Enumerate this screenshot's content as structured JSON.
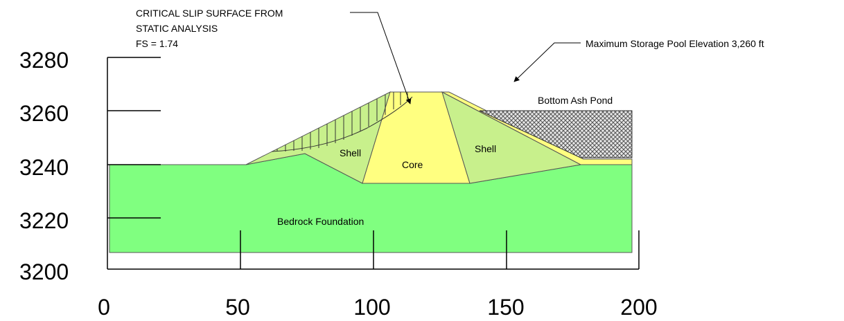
{
  "annotations": {
    "slip_surface": [
      "CRITICAL SLIP SURFACE FROM",
      "STATIC ANALYSIS",
      "FS = 1.74"
    ],
    "pool": "Maximum Storage Pool Elevation 3,260 ft"
  },
  "regions": {
    "shell_left": "Shell",
    "core": "Core",
    "shell_right": "Shell",
    "foundation": "Bedrock Foundation",
    "pond": "Bottom Ash Pond"
  },
  "axes": {
    "x_labels": [
      "0",
      "50",
      "100",
      "150",
      "200"
    ],
    "y_labels": [
      "3280",
      "3260",
      "3240",
      "3220",
      "3200"
    ]
  }
}
